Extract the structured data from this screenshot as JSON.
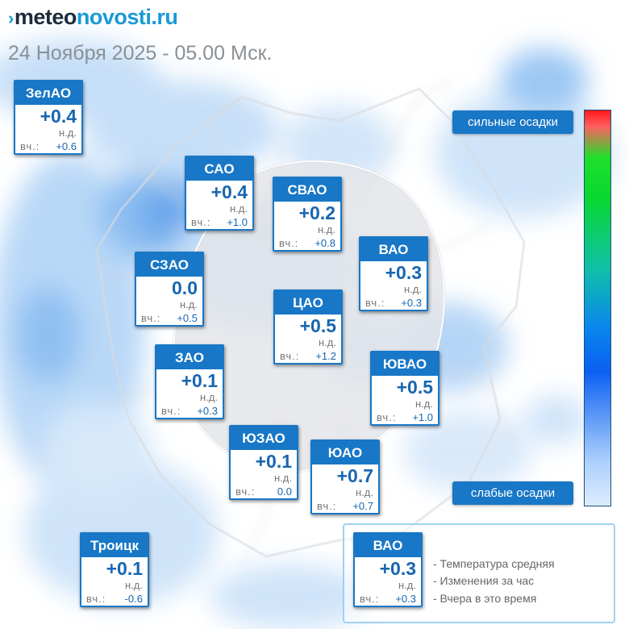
{
  "header": {
    "brand_prefix": "meteo",
    "brand_suffix": "novosti.ru",
    "date": "24 Ноября 2025 - 05.00 Мск."
  },
  "colors": {
    "accent": "#1877c6",
    "value": "#1766b0",
    "muted": "#777777"
  },
  "icons": {
    "logo": "chevron-logo-icon"
  },
  "districts": [
    {
      "id": "zelao",
      "name": "ЗелАО",
      "temp": "+0.4",
      "change": "н.д.",
      "yest_label": "вч.:",
      "yest": "+0.6"
    },
    {
      "id": "sao",
      "name": "САО",
      "temp": "+0.4",
      "change": "н.д.",
      "yest_label": "вч.:",
      "yest": "+1.0"
    },
    {
      "id": "svao",
      "name": "СВАО",
      "temp": "+0.2",
      "change": "н.д.",
      "yest_label": "вч.:",
      "yest": "+0.8"
    },
    {
      "id": "vao",
      "name": "ВАО",
      "temp": "+0.3",
      "change": "н.д.",
      "yest_label": "вч.:",
      "yest": "+0.3"
    },
    {
      "id": "szao",
      "name": "СЗАО",
      "temp": "0.0",
      "change": "н.д.",
      "yest_label": "вч.:",
      "yest": "+0.5"
    },
    {
      "id": "cao",
      "name": "ЦАО",
      "temp": "+0.5",
      "change": "н.д.",
      "yest_label": "вч.:",
      "yest": "+1.2"
    },
    {
      "id": "zao",
      "name": "ЗАО",
      "temp": "+0.1",
      "change": "н.д.",
      "yest_label": "вч.:",
      "yest": "+0.3"
    },
    {
      "id": "yuvao",
      "name": "ЮВАО",
      "temp": "+0.5",
      "change": "н.д.",
      "yest_label": "вч.:",
      "yest": "+1.0"
    },
    {
      "id": "yuzao",
      "name": "ЮЗАО",
      "temp": "+0.1",
      "change": "н.д.",
      "yest_label": "вч.:",
      "yest": "0.0"
    },
    {
      "id": "yuao",
      "name": "ЮАО",
      "temp": "+0.7",
      "change": "н.д.",
      "yest_label": "вч.:",
      "yest": "+0.7"
    },
    {
      "id": "troitsk",
      "name": "Троицк",
      "temp": "+0.1",
      "change": "н.д.",
      "yest_label": "вч.:",
      "yest": "-0.6"
    }
  ],
  "scale": {
    "top_label": "сильные осадки",
    "bottom_label": "слабые осадки"
  },
  "legend": {
    "sample": {
      "name": "ВАО",
      "temp": "+0.3",
      "change": "н.д.",
      "yest_label": "вч.:",
      "yest": "+0.3"
    },
    "lines": [
      "- Температура средняя",
      "- Изменения за час",
      "- Вчера в это время"
    ]
  }
}
